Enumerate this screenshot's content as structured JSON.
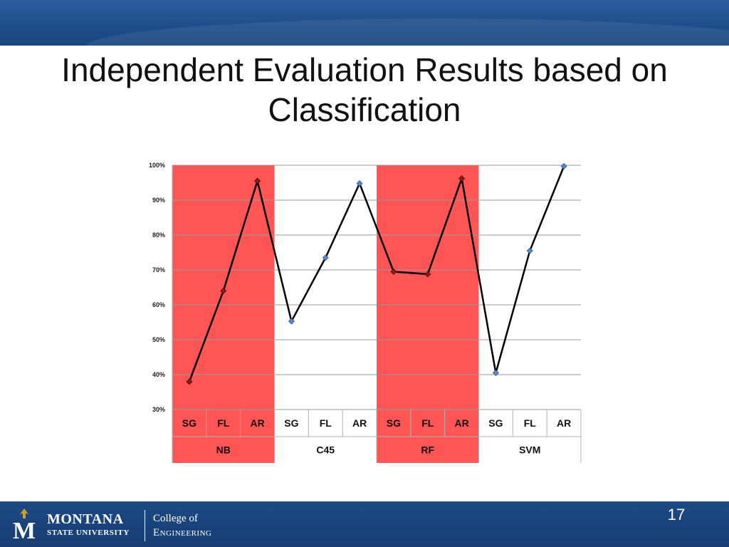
{
  "slide": {
    "title": "Independent Evaluation Results based on Classification",
    "page_number": "17"
  },
  "footer": {
    "university_name": "MONTANA",
    "university_sub": "STATE UNIVERSITY",
    "college_line1": "College of",
    "college_line2": "Engineering",
    "logo_letter": "M"
  },
  "colors": {
    "header_band": "#1f4e8c",
    "footer_band": "#1a427a",
    "highlight_band": "#ff5555",
    "line": "#000000",
    "marker_highlight": "#8b1a1a",
    "marker_plain": "#5b86c4",
    "logo_gold": "#c9a227"
  },
  "chart_data": {
    "type": "line",
    "title": "",
    "xlabel": "",
    "ylabel": "",
    "ylim": [
      0.3,
      1.0
    ],
    "y_ticks": [
      "30%",
      "40%",
      "50%",
      "60%",
      "70%",
      "80%",
      "90%",
      "100%"
    ],
    "y_tick_values": [
      0.3,
      0.4,
      0.5,
      0.6,
      0.7,
      0.8,
      0.9,
      1.0
    ],
    "grid": true,
    "legend": "none",
    "categories": [
      "SG",
      "FL",
      "AR",
      "SG",
      "FL",
      "AR",
      "SG",
      "FL",
      "AR",
      "SG",
      "FL",
      "AR"
    ],
    "groups": [
      {
        "label": "NB",
        "highlighted": true
      },
      {
        "label": "C45",
        "highlighted": false
      },
      {
        "label": "RF",
        "highlighted": true
      },
      {
        "label": "SVM",
        "highlighted": false
      }
    ],
    "series": [
      {
        "values": [
          0.38,
          0.64,
          0.955,
          0.553,
          0.735,
          0.948,
          0.695,
          0.688,
          0.962,
          0.405,
          0.755,
          0.997
        ]
      }
    ]
  }
}
